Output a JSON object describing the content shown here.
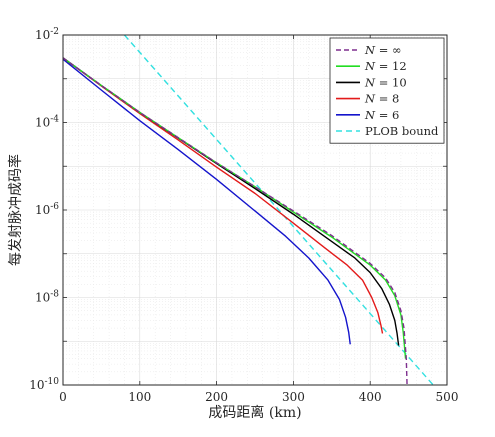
{
  "chart_data": {
    "type": "line",
    "xlabel": "成码距离 (km)",
    "ylabel": "每发射脉冲成码率",
    "xlim": [
      0,
      500
    ],
    "ylim_log10": [
      -10,
      -2
    ],
    "y_scale": "log",
    "grid": true,
    "legend_position": "top-right",
    "x_ticks": [
      "0",
      "100",
      "200",
      "300",
      "400",
      "500"
    ],
    "y_tick_labels": [
      {
        "base": "10",
        "exp": "-10",
        "log10": -10
      },
      {
        "base": "10",
        "exp": "-8",
        "log10": -8
      },
      {
        "base": "10",
        "exp": "-6",
        "log10": -6
      },
      {
        "base": "10",
        "exp": "-4",
        "log10": -4
      },
      {
        "base": "10",
        "exp": "-2",
        "log10": -2
      }
    ],
    "series": [
      {
        "label_var": "N",
        "label_eq": " = ",
        "label_val": "∞",
        "color": "#7E2F8E",
        "dash": "5,3",
        "points": [
          [
            0,
            0.003
          ],
          [
            50,
            0.0007
          ],
          [
            100,
            0.00017
          ],
          [
            150,
            4.5e-05
          ],
          [
            200,
            1.2e-05
          ],
          [
            250,
            3.4e-06
          ],
          [
            300,
            9.5e-07
          ],
          [
            350,
            2.6e-07
          ],
          [
            400,
            6e-08
          ],
          [
            420,
            2.8e-08
          ],
          [
            432,
            1.3e-08
          ],
          [
            440,
            5e-09
          ],
          [
            444,
            2e-09
          ],
          [
            447,
            4e-10
          ],
          [
            448,
            1e-10
          ]
        ]
      },
      {
        "label_var": "N",
        "label_eq": " = ",
        "label_val": "12",
        "color": "#22DD22",
        "dash": "",
        "points": [
          [
            0,
            0.003
          ],
          [
            50,
            0.0007
          ],
          [
            100,
            0.00017
          ],
          [
            150,
            4.5e-05
          ],
          [
            200,
            1.2e-05
          ],
          [
            250,
            3.4e-06
          ],
          [
            300,
            9e-07
          ],
          [
            350,
            2.4e-07
          ],
          [
            400,
            5.5e-08
          ],
          [
            420,
            2.5e-08
          ],
          [
            432,
            1.1e-08
          ],
          [
            440,
            4e-09
          ],
          [
            443,
            1.6e-09
          ],
          [
            446,
            4e-10
          ]
        ]
      },
      {
        "label_var": "N",
        "label_eq": " = ",
        "label_val": "10",
        "color": "#000000",
        "dash": "",
        "points": [
          [
            0,
            0.003
          ],
          [
            50,
            0.0007
          ],
          [
            100,
            0.00017
          ],
          [
            150,
            4.4e-05
          ],
          [
            200,
            1.15e-05
          ],
          [
            250,
            3.1e-06
          ],
          [
            300,
            8e-07
          ],
          [
            350,
            1.9e-07
          ],
          [
            380,
            8e-08
          ],
          [
            400,
            3.7e-08
          ],
          [
            415,
            1.6e-08
          ],
          [
            425,
            7e-09
          ],
          [
            432,
            3e-09
          ],
          [
            435,
            1.5e-09
          ],
          [
            437,
            8e-10
          ]
        ]
      },
      {
        "label_var": "N",
        "label_eq": " = ",
        "label_val": "8",
        "color": "#E31A1A",
        "dash": "",
        "points": [
          [
            0,
            0.003
          ],
          [
            50,
            0.00068
          ],
          [
            100,
            0.00016
          ],
          [
            150,
            4e-05
          ],
          [
            200,
            9.5e-06
          ],
          [
            250,
            2.4e-06
          ],
          [
            300,
            5e-07
          ],
          [
            340,
            1.4e-07
          ],
          [
            370,
            5.5e-08
          ],
          [
            390,
            2.5e-08
          ],
          [
            402,
            1e-08
          ],
          [
            410,
            4.5e-09
          ],
          [
            414,
            2.3e-09
          ],
          [
            416,
            1.5e-09
          ]
        ]
      },
      {
        "label_var": "N",
        "label_eq": " = ",
        "label_val": "6",
        "color": "#1414CC",
        "dash": "",
        "points": [
          [
            0,
            0.0028
          ],
          [
            50,
            0.00055
          ],
          [
            100,
            0.00011
          ],
          [
            150,
            2.4e-05
          ],
          [
            200,
            5e-06
          ],
          [
            250,
            9.5e-07
          ],
          [
            290,
            2.5e-07
          ],
          [
            320,
            8e-08
          ],
          [
            345,
            2.5e-08
          ],
          [
            360,
            9e-09
          ],
          [
            368,
            3.5e-09
          ],
          [
            372,
            1.6e-09
          ],
          [
            374,
            8.5e-10
          ]
        ]
      },
      {
        "label_var": "",
        "label_eq": "",
        "label_val": "PLOB bound",
        "color": "#33E0E0",
        "dash": "6,4",
        "points": [
          [
            80,
            0.01
          ],
          [
            482,
            1e-10
          ]
        ]
      }
    ]
  }
}
